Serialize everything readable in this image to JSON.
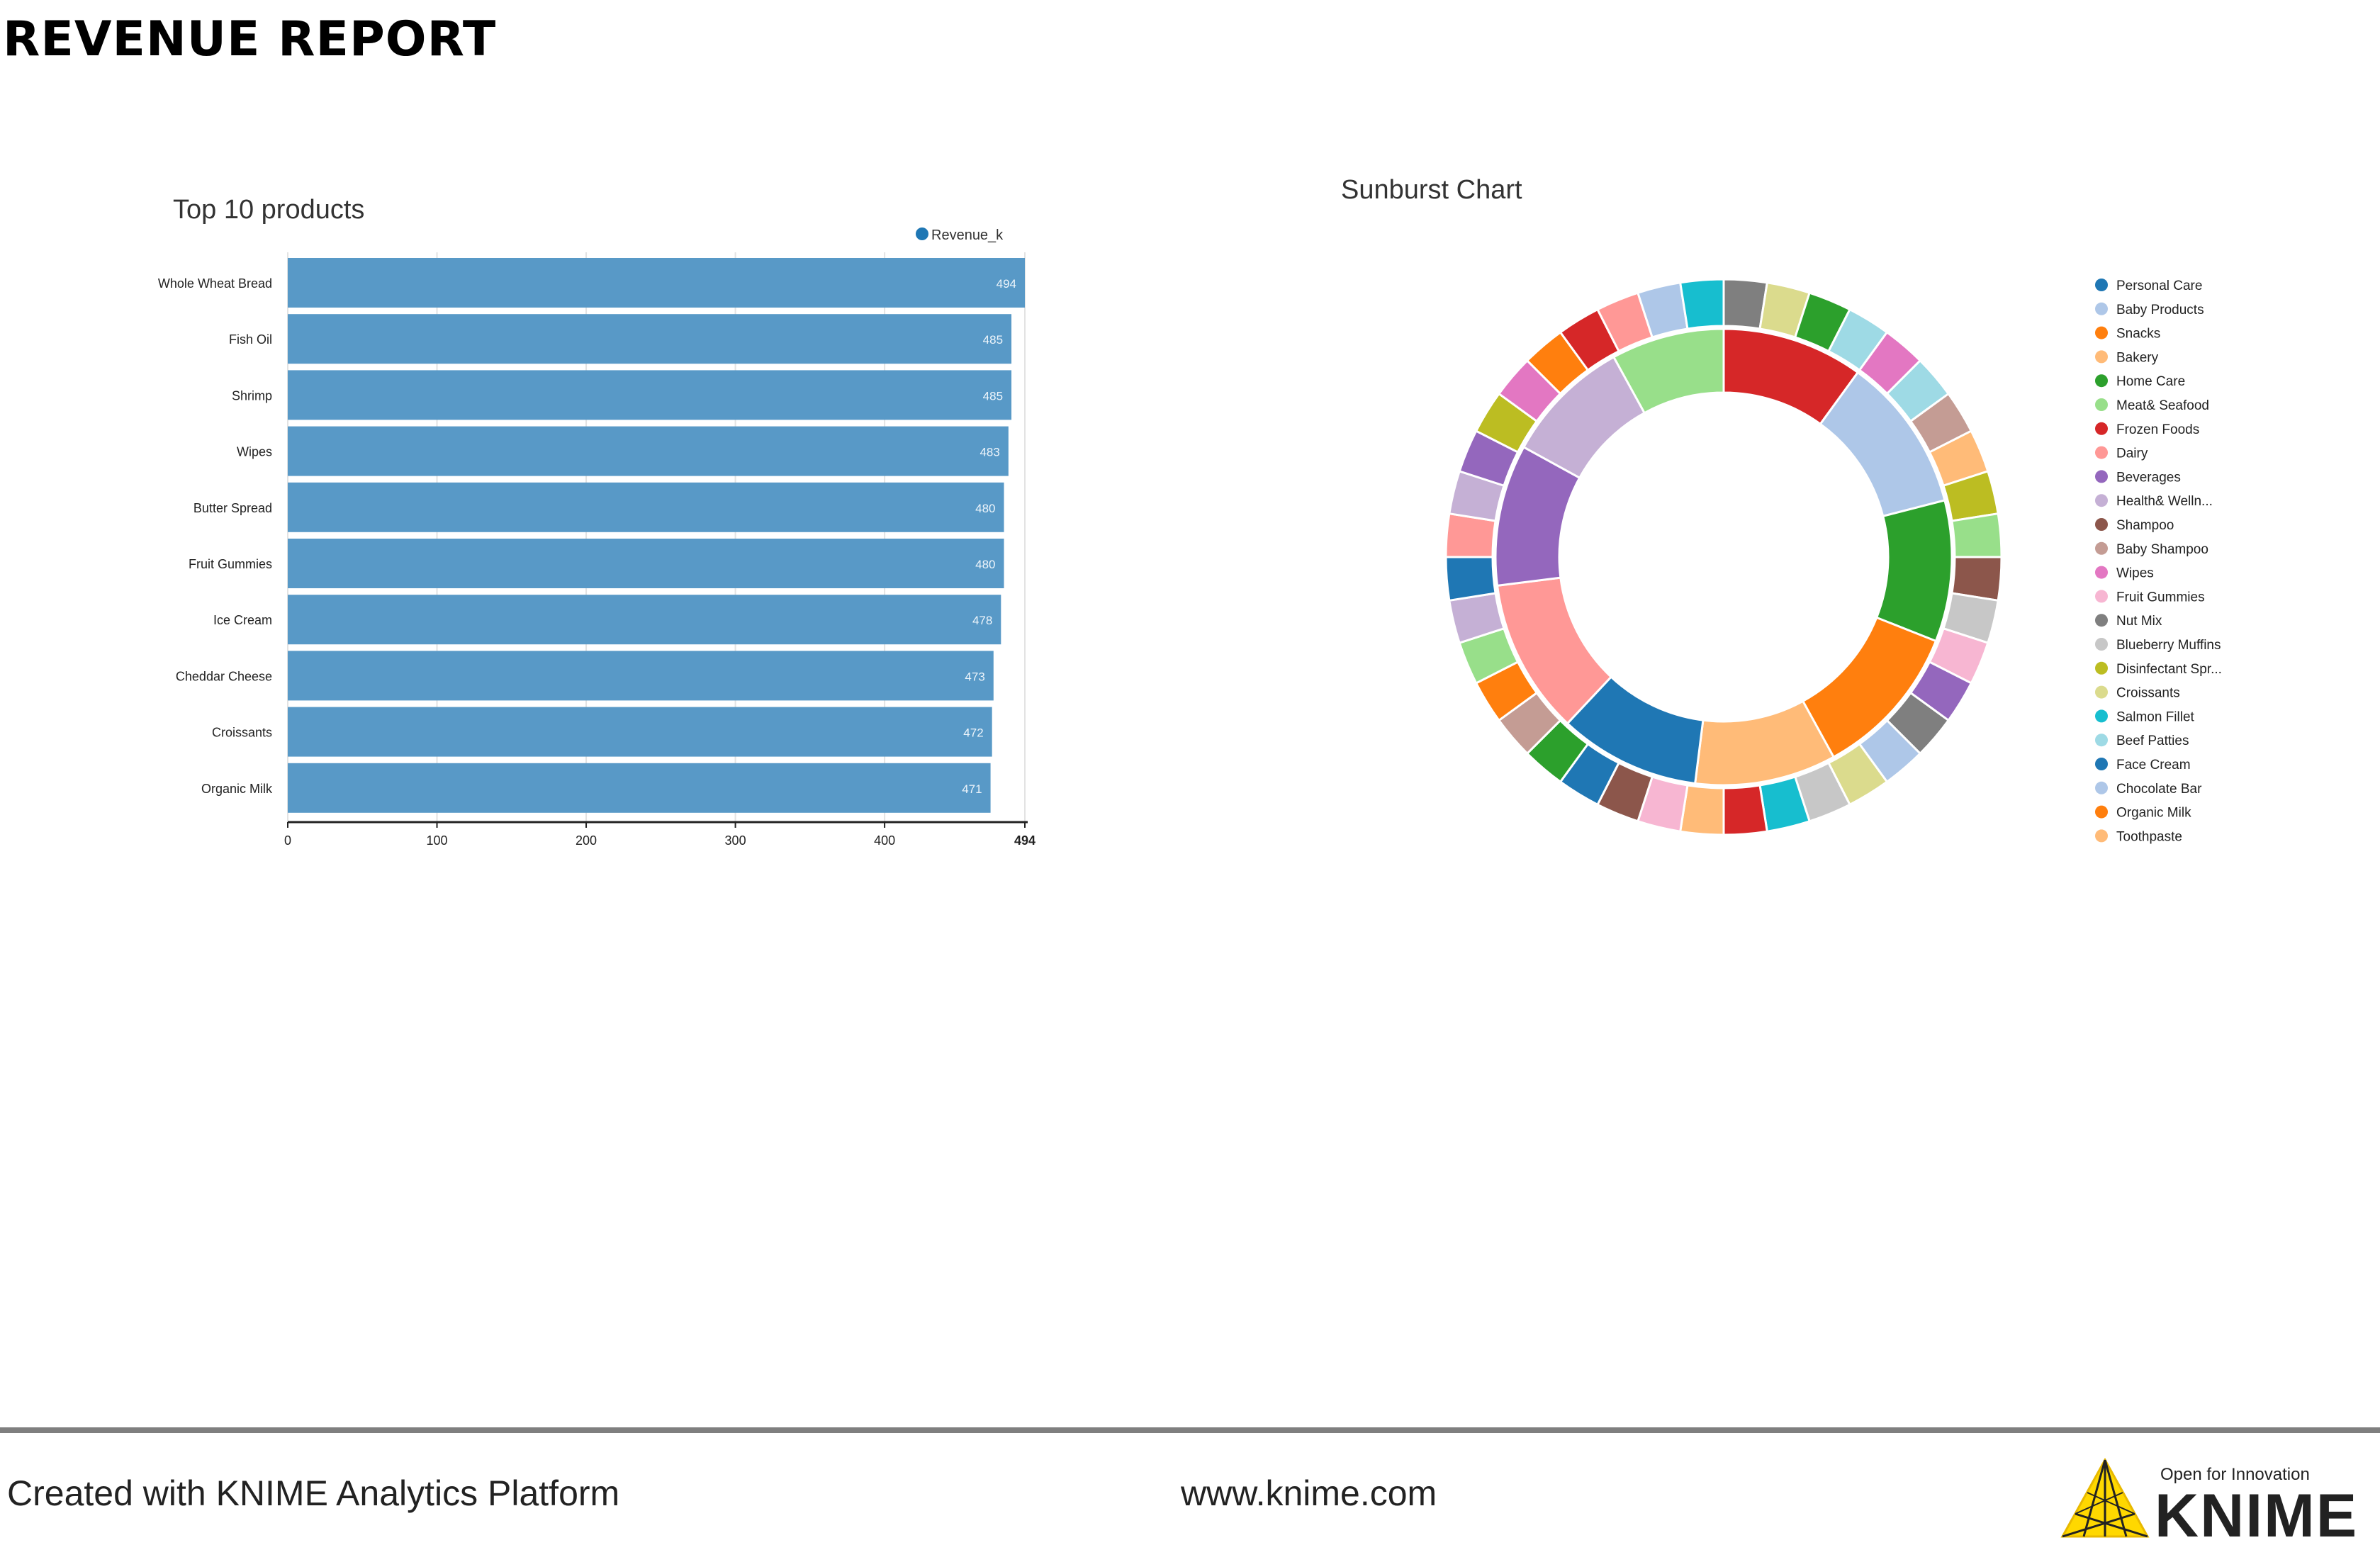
{
  "report": {
    "title": "REVENUE REPORT"
  },
  "footer": {
    "created_with": "Created with KNIME Analytics Platform",
    "website": "www.knime.com",
    "logo_tagline": "Open for Innovation",
    "logo_wordmark": "KNIME"
  },
  "chart_data": [
    {
      "type": "bar",
      "orientation": "horizontal",
      "title": "Top 10 products",
      "categories": [
        "Whole Wheat Bread",
        "Fish Oil",
        "Shrimp",
        "Wipes",
        "Butter Spread",
        "Fruit Gummies",
        "Ice Cream",
        "Cheddar Cheese",
        "Croissants",
        "Organic Milk"
      ],
      "series": [
        {
          "name": "Revenue_k",
          "color": "#5899c7",
          "values": [
            494,
            485,
            485,
            483,
            480,
            480,
            478,
            473,
            472,
            471
          ]
        }
      ],
      "xlim": [
        0,
        494
      ],
      "x_ticks": [
        "0",
        "100",
        "200",
        "300",
        "400",
        "494"
      ],
      "tick_values": [
        0,
        100,
        200,
        300,
        400,
        494
      ],
      "grid": true,
      "legend_position": "top-right",
      "legend_marker_color": "#1f77b4"
    },
    {
      "type": "sunburst",
      "title": "Sunburst Chart",
      "legend_position": "right",
      "legend": [
        {
          "label": "Personal Care",
          "color": "#1f77b4"
        },
        {
          "label": "Baby Products",
          "color": "#aec7e8"
        },
        {
          "label": "Snacks",
          "color": "#ff7f0e"
        },
        {
          "label": "Bakery",
          "color": "#ffbb78"
        },
        {
          "label": "Home Care",
          "color": "#2ca02c"
        },
        {
          "label": "Meat& Seafood",
          "color": "#98df8a"
        },
        {
          "label": "Frozen Foods",
          "color": "#d62728"
        },
        {
          "label": "Dairy",
          "color": "#ff9896"
        },
        {
          "label": "Beverages",
          "color": "#9467bd"
        },
        {
          "label": "Health& Welln...",
          "color": "#c5b0d5"
        },
        {
          "label": "Shampoo",
          "color": "#8c564b"
        },
        {
          "label": "Baby Shampoo",
          "color": "#c49c94"
        },
        {
          "label": "Wipes",
          "color": "#e377c2"
        },
        {
          "label": "Fruit Gummies",
          "color": "#f7b6d2"
        },
        {
          "label": "Nut Mix",
          "color": "#7f7f7f"
        },
        {
          "label": "Blueberry Muffins",
          "color": "#c7c7c7"
        },
        {
          "label": "Disinfectant Spr...",
          "color": "#bcbd22"
        },
        {
          "label": "Croissants",
          "color": "#dbdb8d"
        },
        {
          "label": "Salmon Fillet",
          "color": "#17becf"
        },
        {
          "label": "Beef Patties",
          "color": "#9edae5"
        },
        {
          "label": "Face Cream",
          "color": "#1f77b4"
        },
        {
          "label": "Chocolate Bar",
          "color": "#aec7e8"
        },
        {
          "label": "Organic Milk",
          "color": "#ff7f0e"
        },
        {
          "label": "Toothpaste",
          "color": "#ffbb78"
        }
      ],
      "inner_ring": [
        {
          "color": "#d62728",
          "value": 10
        },
        {
          "color": "#aec7e8",
          "value": 11
        },
        {
          "color": "#2ca02c",
          "value": 10
        },
        {
          "color": "#ff7f0e",
          "value": 11
        },
        {
          "color": "#ffbb78",
          "value": 10
        },
        {
          "color": "#1f77b4",
          "value": 10
        },
        {
          "color": "#ff9896",
          "value": 11
        },
        {
          "color": "#9467bd",
          "value": 10
        },
        {
          "color": "#c5b0d5",
          "value": 9
        },
        {
          "color": "#98df8a",
          "value": 8
        }
      ],
      "outer_ring": [
        {
          "color": "#7f7f7f",
          "value": 1
        },
        {
          "color": "#dbdb8d",
          "value": 1
        },
        {
          "color": "#2ca02c",
          "value": 1
        },
        {
          "color": "#9edae5",
          "value": 1
        },
        {
          "color": "#e377c2",
          "value": 1
        },
        {
          "color": "#9edae5",
          "value": 1
        },
        {
          "color": "#c49c94",
          "value": 1
        },
        {
          "color": "#ffbb78",
          "value": 1
        },
        {
          "color": "#bcbd22",
          "value": 1
        },
        {
          "color": "#98df8a",
          "value": 1
        },
        {
          "color": "#8c564b",
          "value": 1
        },
        {
          "color": "#c7c7c7",
          "value": 1
        },
        {
          "color": "#f7b6d2",
          "value": 1
        },
        {
          "color": "#9467bd",
          "value": 1
        },
        {
          "color": "#7f7f7f",
          "value": 1
        },
        {
          "color": "#aec7e8",
          "value": 1
        },
        {
          "color": "#dbdb8d",
          "value": 1
        },
        {
          "color": "#c7c7c7",
          "value": 1
        },
        {
          "color": "#17becf",
          "value": 1
        },
        {
          "color": "#d62728",
          "value": 1
        },
        {
          "color": "#ffbb78",
          "value": 1
        },
        {
          "color": "#f7b6d2",
          "value": 1
        },
        {
          "color": "#8c564b",
          "value": 1
        },
        {
          "color": "#1f77b4",
          "value": 1
        },
        {
          "color": "#2ca02c",
          "value": 1
        },
        {
          "color": "#c49c94",
          "value": 1
        },
        {
          "color": "#ff7f0e",
          "value": 1
        },
        {
          "color": "#98df8a",
          "value": 1
        },
        {
          "color": "#c5b0d5",
          "value": 1
        },
        {
          "color": "#1f77b4",
          "value": 1
        },
        {
          "color": "#ff9896",
          "value": 1
        },
        {
          "color": "#c5b0d5",
          "value": 1
        },
        {
          "color": "#9467bd",
          "value": 1
        },
        {
          "color": "#bcbd22",
          "value": 1
        },
        {
          "color": "#e377c2",
          "value": 1
        },
        {
          "color": "#ff7f0e",
          "value": 1
        },
        {
          "color": "#d62728",
          "value": 1
        },
        {
          "color": "#ff9896",
          "value": 1
        },
        {
          "color": "#aec7e8",
          "value": 1
        },
        {
          "color": "#17becf",
          "value": 1
        }
      ]
    }
  ]
}
